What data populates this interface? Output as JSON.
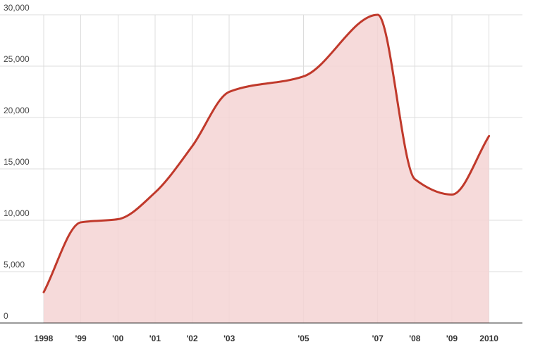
{
  "chart_data": {
    "type": "area",
    "title": "",
    "xlabel": "",
    "ylabel": "",
    "x": [
      1998,
      1999,
      2000,
      2001,
      2002,
      2003,
      2005,
      2007,
      2008,
      2009,
      2010
    ],
    "x_tick_labels": [
      "1998",
      "'99",
      "'00",
      "'01",
      "'02",
      "'03",
      "'05",
      "'07",
      "'08",
      "'09",
      "2010"
    ],
    "xlim": [
      1998,
      2010.9
    ],
    "ylim": [
      0,
      30000
    ],
    "y_ticks": [
      0,
      5000,
      10000,
      15000,
      20000,
      25000,
      30000
    ],
    "y_tick_labels": [
      "0",
      "5,000",
      "10,000",
      "15,000",
      "20,000",
      "25,000",
      "30,000"
    ],
    "series": [
      {
        "values": [
          3000,
          9800,
          10100,
          12700,
          17200,
          22500,
          24000,
          30000,
          14000,
          12500,
          18200
        ],
        "line_color": "#c0392b",
        "fill_color": "#f4d4d4"
      }
    ],
    "grid": true,
    "smooth": true
  }
}
